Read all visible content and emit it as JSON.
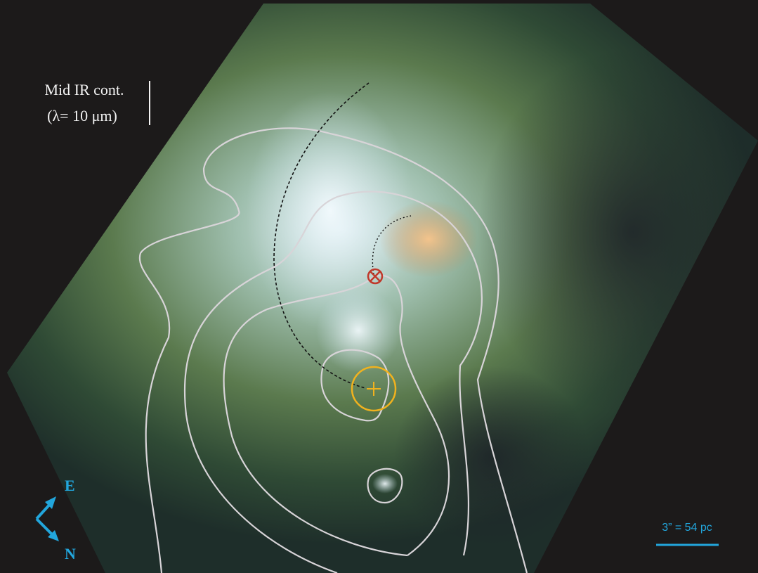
{
  "legend": {
    "line1": "Mid IR cont.",
    "line2": "(λ= 10 μm)"
  },
  "compass": {
    "east": "E",
    "north": "N"
  },
  "scale_bar": {
    "label": "3” = 54 pc"
  }
}
